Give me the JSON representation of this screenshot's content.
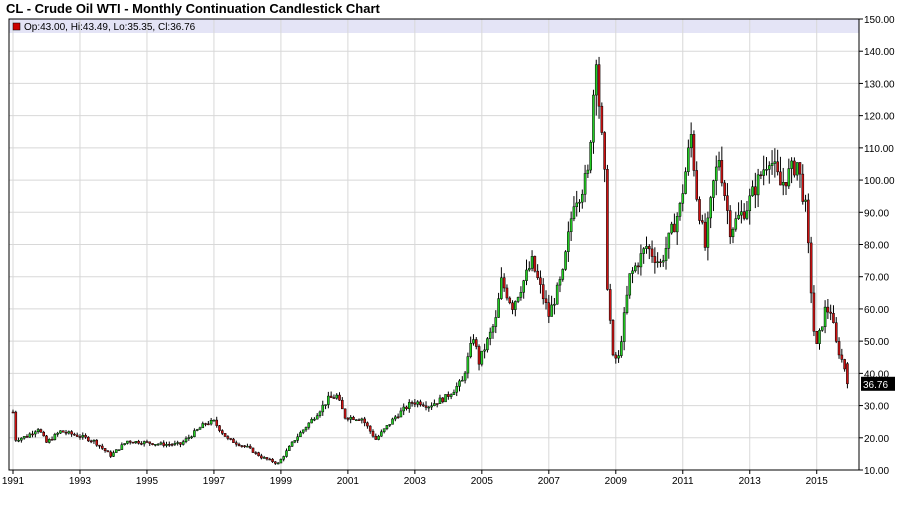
{
  "title": "CL - Crude Oil WTI - Monthly Continuation Candlestick Chart",
  "legend": {
    "text": "Op:43.00, Hi:43.49, Lo:35.35, Cl:36.76",
    "color": "#cc0000"
  },
  "last_price_label": "36.76",
  "colors": {
    "up": "#22cc22",
    "down": "#cc1111",
    "wick": "#000000",
    "grid": "#d8d8d8",
    "legend_band": "#e4e4f6",
    "last_price_box": "#000000"
  },
  "chart_data": {
    "type": "candlestick",
    "title": "CL - Crude Oil WTI - Monthly Continuation Candlestick Chart",
    "xlabel": "",
    "ylabel": "",
    "x_tick_labels": [
      "1991",
      "1993",
      "1995",
      "1997",
      "1999",
      "2001",
      "2003",
      "2005",
      "2007",
      "2009",
      "2011",
      "2013",
      "2015"
    ],
    "y_tick_labels": [
      "10.00",
      "20.00",
      "30.00",
      "40.00",
      "50.00",
      "60.00",
      "70.00",
      "80.00",
      "90.00",
      "100.00",
      "110.00",
      "120.00",
      "130.00",
      "140.00",
      "150.00"
    ],
    "ylim": [
      10,
      150
    ],
    "xlim": [
      "1991-01",
      "2016-02"
    ],
    "grid": true,
    "legend_position": "top-left",
    "last": {
      "date": "2015-12",
      "open": 43.0,
      "high": 43.49,
      "low": 35.35,
      "close": 36.76
    },
    "approx_close_path": [
      [
        "1991-01",
        28.0
      ],
      [
        "1991-02",
        19.5
      ],
      [
        "1991-06",
        20.5
      ],
      [
        "1991-10",
        23.0
      ],
      [
        "1992-01",
        18.5
      ],
      [
        "1992-06",
        22.0
      ],
      [
        "1993-01",
        20.5
      ],
      [
        "1993-06",
        19.0
      ],
      [
        "1993-12",
        14.5
      ],
      [
        "1994-06",
        19.0
      ],
      [
        "1995-01",
        18.5
      ],
      [
        "1995-06",
        18.0
      ],
      [
        "1996-01",
        18.0
      ],
      [
        "1996-10",
        24.5
      ],
      [
        "1997-01",
        25.0
      ],
      [
        "1997-06",
        19.5
      ],
      [
        "1998-01",
        17.0
      ],
      [
        "1998-06",
        14.0
      ],
      [
        "1998-12",
        12.0
      ],
      [
        "1999-06",
        19.5
      ],
      [
        "1999-12",
        25.5
      ],
      [
        "2000-06",
        32.0
      ],
      [
        "2000-09",
        33.0
      ],
      [
        "2000-12",
        26.5
      ],
      [
        "2001-06",
        26.0
      ],
      [
        "2001-11",
        19.5
      ],
      [
        "2002-06",
        26.5
      ],
      [
        "2002-12",
        31.0
      ],
      [
        "2003-03",
        31.0
      ],
      [
        "2003-06",
        30.0
      ],
      [
        "2003-12",
        32.5
      ],
      [
        "2004-06",
        37.5
      ],
      [
        "2004-10",
        51.5
      ],
      [
        "2004-12",
        43.5
      ],
      [
        "2005-06",
        56.5
      ],
      [
        "2005-08",
        68.5
      ],
      [
        "2005-12",
        61.0
      ],
      [
        "2006-07",
        74.5
      ],
      [
        "2006-12",
        61.0
      ],
      [
        "2007-01",
        58.0
      ],
      [
        "2007-06",
        70.5
      ],
      [
        "2007-10",
        94.0
      ],
      [
        "2007-12",
        96.0
      ],
      [
        "2008-03",
        101.5
      ],
      [
        "2008-06",
        140.0
      ],
      [
        "2008-07",
        124.0
      ],
      [
        "2008-09",
        100.5
      ],
      [
        "2008-10",
        67.8
      ],
      [
        "2008-12",
        44.6
      ],
      [
        "2009-02",
        44.8
      ],
      [
        "2009-06",
        69.9
      ],
      [
        "2009-12",
        79.4
      ],
      [
        "2010-05",
        74.0
      ],
      [
        "2010-12",
        91.4
      ],
      [
        "2011-04",
        113.9
      ],
      [
        "2011-06",
        95.4
      ],
      [
        "2011-09",
        79.2
      ],
      [
        "2011-12",
        98.8
      ],
      [
        "2012-02",
        107.1
      ],
      [
        "2012-06",
        84.9
      ],
      [
        "2012-12",
        91.8
      ],
      [
        "2013-08",
        107.6
      ],
      [
        "2013-12",
        98.4
      ],
      [
        "2014-06",
        105.4
      ],
      [
        "2014-09",
        91.2
      ],
      [
        "2014-12",
        53.3
      ],
      [
        "2015-01",
        48.2
      ],
      [
        "2015-04",
        59.6
      ],
      [
        "2015-06",
        59.5
      ],
      [
        "2015-08",
        49.2
      ],
      [
        "2015-11",
        41.7
      ],
      [
        "2015-12",
        36.76
      ]
    ]
  }
}
